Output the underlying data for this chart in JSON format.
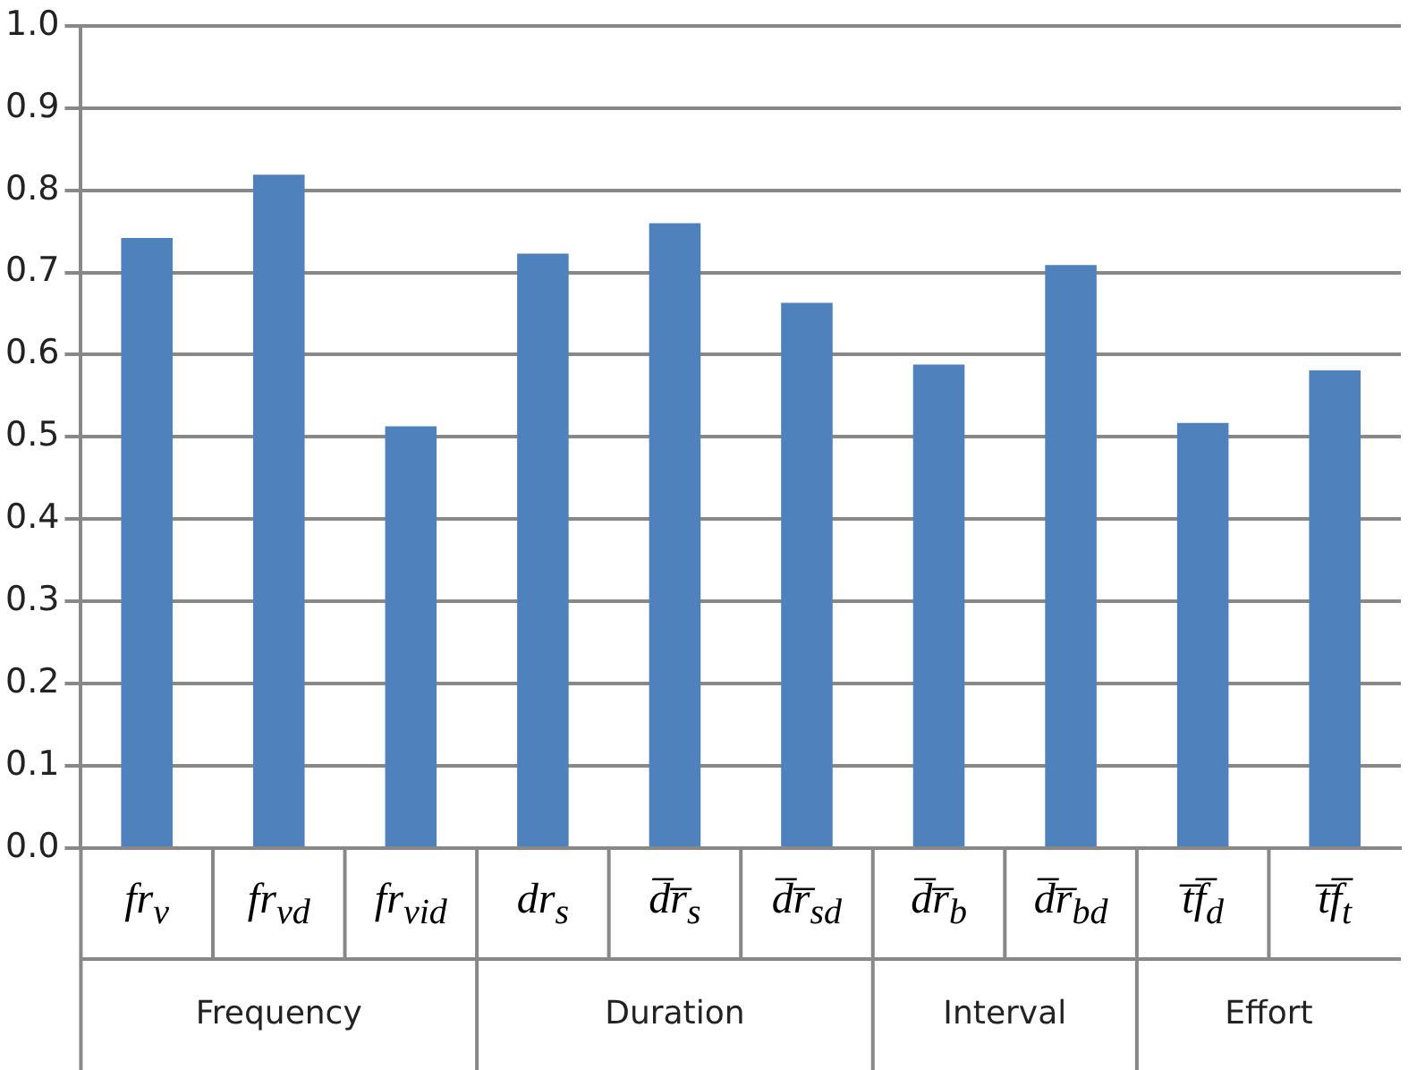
{
  "chart_data": {
    "type": "bar",
    "categories": [
      "fr$_{v}$",
      "fr$_{vd}$",
      "fr$_{vid}$",
      "dr$_{s}$",
      "d̅r̅$_{s}$",
      "d̅r̅$_{sd}$",
      "d̅r̅$_{b}$",
      "d̅r̅$_{bd}$",
      "t̅f̅$_{d}$",
      "t̅f̅$_{t}$"
    ],
    "values": [
      0.742,
      0.819,
      0.513,
      0.723,
      0.76,
      0.663,
      0.588,
      0.709,
      0.517,
      0.581
    ],
    "color": "#4f81bd",
    "ylim": [
      0,
      1
    ],
    "yticks": [
      {
        "value": 0,
        "label": "0.0"
      },
      {
        "value": 0.1,
        "label": "0.1"
      },
      {
        "value": 0.2,
        "label": "0.2"
      },
      {
        "value": 0.3,
        "label": "0.3"
      },
      {
        "value": 0.4,
        "label": "0.4"
      },
      {
        "value": 0.5,
        "label": "0.5"
      },
      {
        "value": 0.6,
        "label": "0.6"
      },
      {
        "value": 0.7,
        "label": "0.7"
      },
      {
        "value": 0.8,
        "label": "0.8"
      },
      {
        "value": 0.9,
        "label": "0.9"
      },
      {
        "value": 1,
        "label": "1.0"
      }
    ],
    "grid": "y",
    "annotations": [
      "Frequency",
      "Duration",
      "Interval",
      "Effort"
    ]
  }
}
